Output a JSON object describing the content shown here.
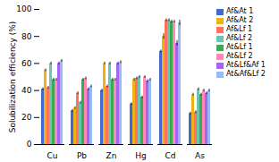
{
  "chart_data": {
    "type": "bar",
    "categories": [
      "Cu",
      "Pb",
      "Zn",
      "Hg",
      "Cd",
      "As"
    ],
    "series": [
      {
        "name": "Af&At 1",
        "values": [
          41,
          25,
          40,
          30,
          69,
          23
        ],
        "errors": [
          1,
          1,
          1,
          1,
          1,
          1
        ]
      },
      {
        "name": "Af&At 2",
        "values": [
          55,
          27,
          60,
          48,
          80,
          37
        ],
        "errors": [
          1,
          1,
          1,
          1,
          2,
          1
        ]
      },
      {
        "name": "Af&Lf 1",
        "values": [
          42,
          38,
          43,
          49,
          92,
          24
        ],
        "errors": [
          1,
          1,
          1,
          1,
          1,
          1
        ]
      },
      {
        "name": "Af&Lf 2",
        "values": [
          60,
          31,
          60,
          50,
          92,
          41
        ],
        "errors": [
          1,
          1,
          1,
          1,
          1,
          1
        ]
      },
      {
        "name": "At&Lf 1",
        "values": [
          48,
          48,
          48,
          35,
          91,
          37
        ],
        "errors": [
          1,
          1,
          1,
          1,
          1,
          1
        ]
      },
      {
        "name": "At&Lf 2",
        "values": [
          48,
          49,
          48,
          50,
          91,
          40
        ],
        "errors": [
          1,
          1,
          1,
          1,
          1,
          1
        ]
      },
      {
        "name": "At&Lf&Af 1",
        "values": [
          60,
          41,
          60,
          47,
          75,
          38
        ],
        "errors": [
          1,
          1,
          1,
          1,
          2,
          1
        ]
      },
      {
        "name": "At&Af&Lf 2",
        "values": [
          62,
          43,
          61,
          48,
          90,
          40
        ],
        "errors": [
          1,
          1,
          1,
          1,
          2,
          1
        ]
      }
    ],
    "ylabel": "Solubilization efficiency (%)",
    "ylim": [
      0,
      100
    ],
    "yticks": [
      0,
      20,
      40,
      60,
      80,
      100
    ],
    "grid": false,
    "legend": "upper right"
  }
}
